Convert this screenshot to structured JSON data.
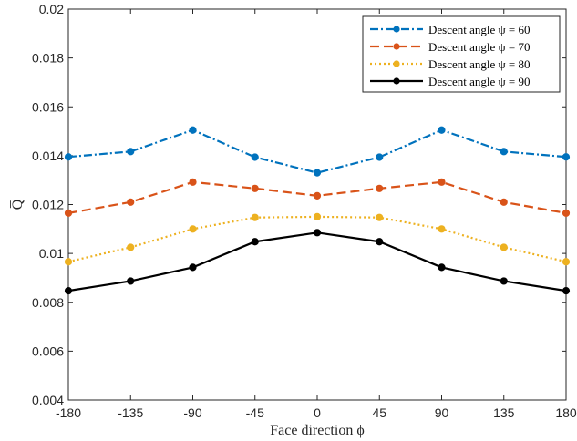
{
  "chart_data": {
    "type": "line",
    "xlabel": "Face direction ϕ",
    "ylabel": "Q̅",
    "x": [
      -180,
      -135,
      -90,
      -45,
      0,
      45,
      90,
      135,
      180
    ],
    "xticks": [
      "-180",
      "-135",
      "-90",
      "-45",
      "0",
      "45",
      "90",
      "135",
      "180"
    ],
    "xlim": [
      -180,
      180
    ],
    "ylim": [
      0.004,
      0.02
    ],
    "yticks": [
      0.004,
      0.006,
      0.008,
      0.01,
      0.012,
      0.014,
      0.016,
      0.018,
      0.02
    ],
    "ytick_labels": [
      "0.004",
      "0.006",
      "0.008",
      "0.01",
      "0.012",
      "0.014",
      "0.016",
      "0.018",
      "0.02"
    ],
    "grid": false,
    "legend_position": "top-right",
    "series": [
      {
        "name": "Descent angle ψ = 60",
        "color": "#0072BD",
        "dash": "dash-dot",
        "values": [
          0.01395,
          0.01417,
          0.01505,
          0.01394,
          0.0133,
          0.01394,
          0.01505,
          0.01417,
          0.01395
        ]
      },
      {
        "name": "Descent angle ψ = 70",
        "color": "#D95319",
        "dash": "dashed",
        "values": [
          0.01165,
          0.0121,
          0.01292,
          0.01266,
          0.01236,
          0.01266,
          0.01292,
          0.0121,
          0.01165
        ]
      },
      {
        "name": "Descent angle ψ = 80",
        "color": "#EDB120",
        "dash": "dotted",
        "values": [
          0.00966,
          0.01025,
          0.011,
          0.01147,
          0.0115,
          0.01147,
          0.011,
          0.01025,
          0.00966
        ]
      },
      {
        "name": "Descent angle ψ = 90",
        "color": "#000000",
        "dash": "solid",
        "values": [
          0.00847,
          0.00887,
          0.00943,
          0.01048,
          0.01085,
          0.01048,
          0.00943,
          0.00887,
          0.00847
        ]
      }
    ]
  }
}
